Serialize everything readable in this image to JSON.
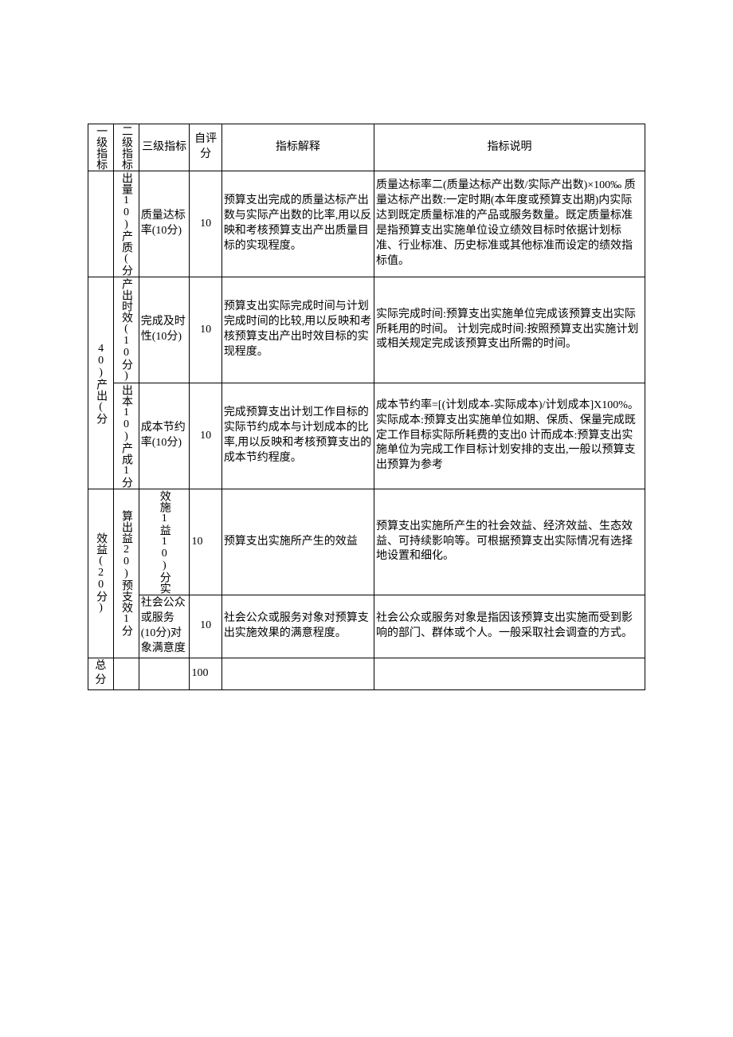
{
  "table": {
    "columns": [
      "一级指标",
      "二级指标",
      "三级指标",
      "自评分",
      "指标解释",
      "指标说明"
    ],
    "rows": [
      {
        "lvl1": "",
        "lvl2": "出量10)产质(分",
        "lvl3": "质量达标率(10分)",
        "score": "10",
        "interp": "预算支出完成的质量达标产出数与实际产出数的比率,用以反映和考核预算支出产出质量目标的实现程度。",
        "explain": "质量达标率二(质量达标产出数/实际产出数)×100‰\n质量达标产出数:一定时期(本年度或预算支出期)内实际达到既定质量标准的产品或服务数量。既定质量标准是指预算支出实施单位设立绩效目标时依据计划标准、行业标准、历史标准或其他标准而设定的绩效指标值。"
      },
      {
        "lvl1": "40)产出(分",
        "lvl2": "产出时效(10分)",
        "lvl3": "完成及时性(10分)",
        "score": "10",
        "interp": "预算支出实际完成时间与计划完成时间的比较,用以反映和考核预算支出产出时效目标的实现程度。",
        "explain": "实际完成时间:预算支出实施单位完成该预算支出实际所耗用的时间。\n计划完成时间:按照预算支出实施计划或相关规定完成该预算支出所需的时间。"
      },
      {
        "lvl1": "",
        "lvl2": "出本10)产成1分",
        "lvl3": "成本节约率(10分)",
        "score": "10",
        "interp": "完成预算支出计划工作目标的实际节约成本与计划成本的比率,用以反映和考核预算支出的成本节约程度。",
        "explain": "成本节约率=[(计划成本-实际成本)/计划成本]X100%。\n实际成本:预算支出实施单位如期、保质、保量完成既定工作目标实际所耗费的支出0\n计而成本:预算支出实施单位为完成工作目标计划安排的支出,一般以预算支出预算为参考"
      },
      {
        "lvl1": "效益(20分)",
        "lvl2": "算出益20)预支效1分",
        "lvl3": "效施1益10)分实",
        "score": "10",
        "interp": "预算支出实施所产生的效益",
        "explain": "预算支出实施所产生的社会效益、经济效益、生态效益、可持续影响等。可根据预算支出实际情况有选择地设置和细化。"
      },
      {
        "lvl1": "",
        "lvl2": "",
        "lvl3": "社会公众或服务(10分)对象满意度",
        "score": "10",
        "interp": "社会公众或服务对象对预算支出实施效果的满意程度。",
        "explain": "社会公众或服务对象是指因该预算支出实施而受到影响的部门、群体或个人。一般采取社会调查的方式。"
      },
      {
        "lvl1": "总分",
        "lvl2": "",
        "lvl3": "",
        "score": "100",
        "interp": "",
        "explain": ""
      }
    ]
  }
}
